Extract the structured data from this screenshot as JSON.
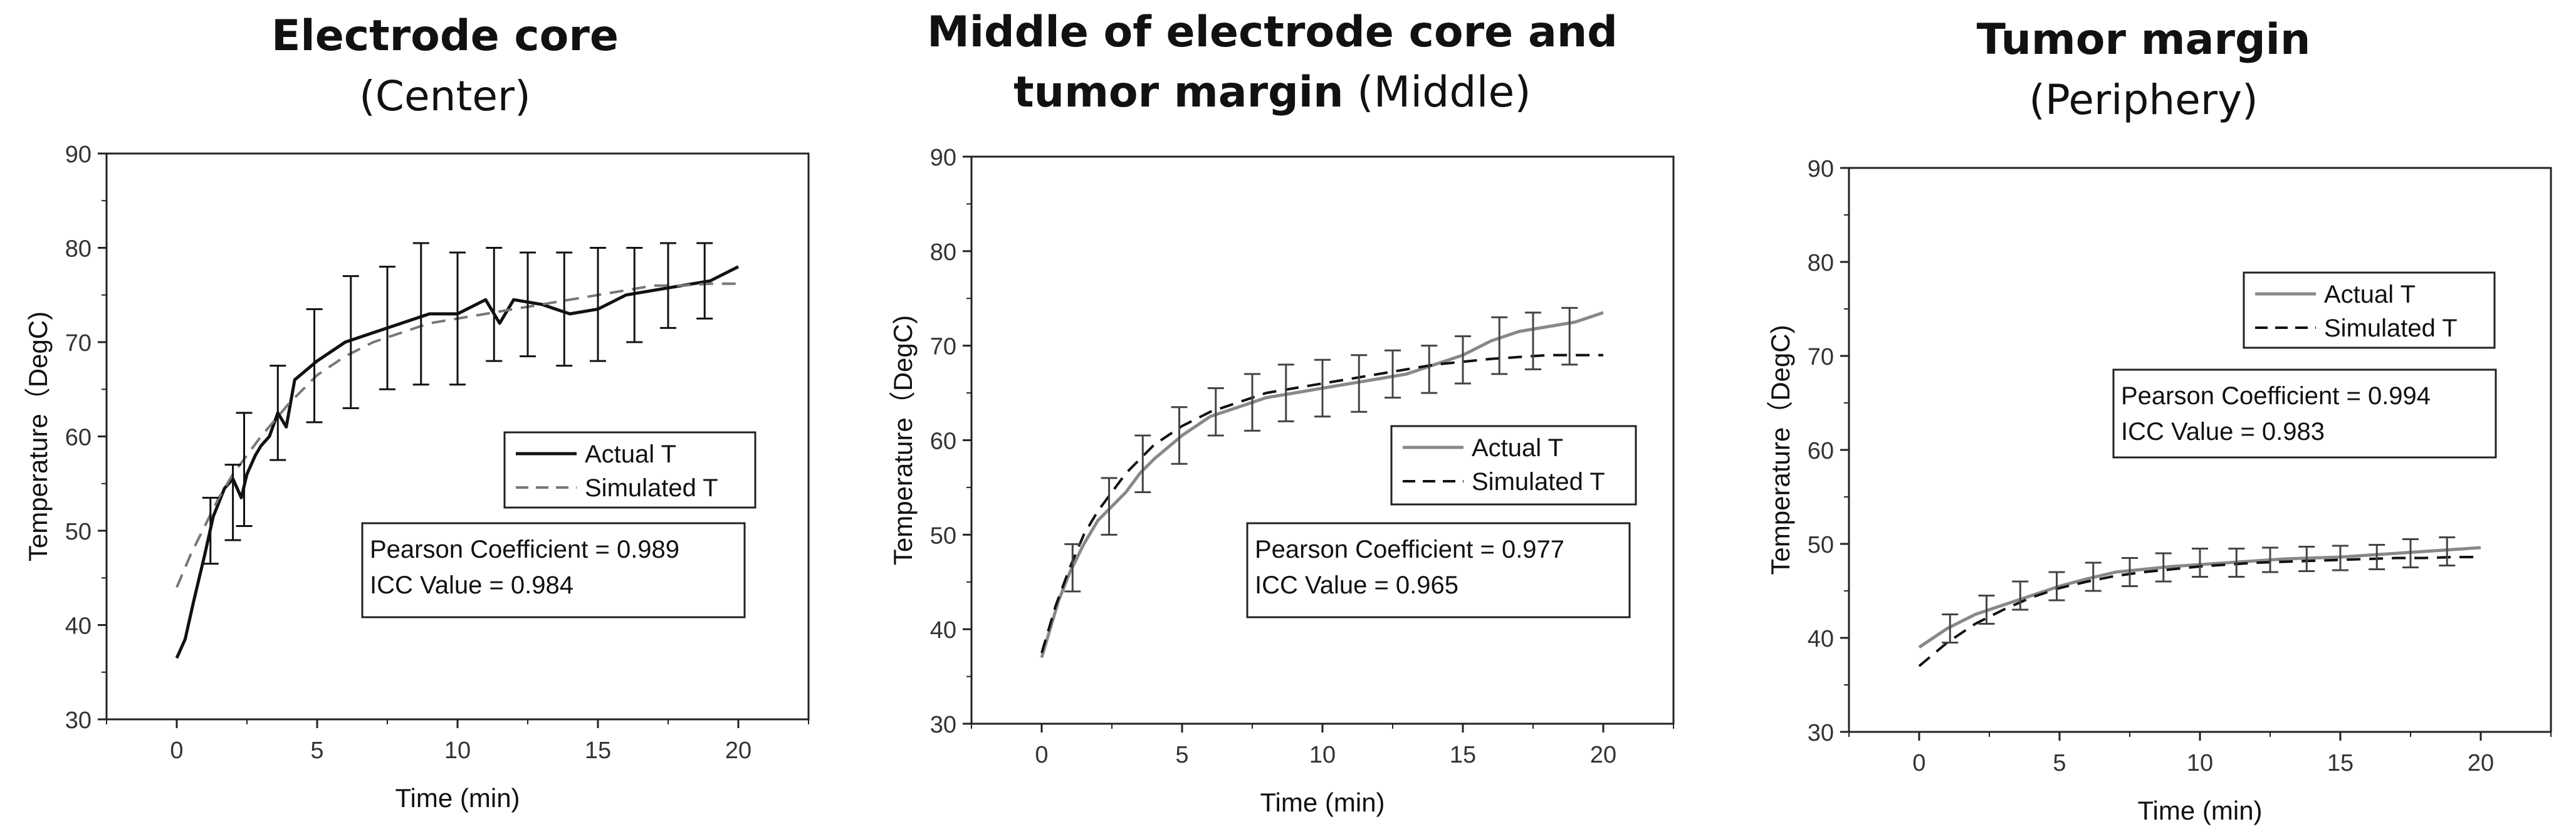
{
  "chart_data": [
    {
      "type": "line",
      "title_bold": "Electrode core",
      "title_rest": "(Center)",
      "xlabel": "Time (min)",
      "ylabel": "Temperature（DegC)",
      "xlim": [
        -2.5,
        22.5
      ],
      "ylim": [
        30,
        90
      ],
      "xticks": [
        0,
        5,
        10,
        15,
        20
      ],
      "yticks": [
        30,
        40,
        50,
        60,
        70,
        80,
        90
      ],
      "legend": {
        "labels": [
          "Actual T",
          "Simulated T"
        ],
        "position": "right-middle"
      },
      "annotation": [
        "Pearson Coefficient = 0.989",
        "ICC Value = 0.984"
      ],
      "colors": {
        "actual": "#111111",
        "simulated": "#777777"
      },
      "series": [
        {
          "name": "Actual T",
          "style": "solid",
          "x": [
            0,
            0.3,
            0.6,
            1.0,
            1.3,
            1.7,
            2.0,
            2.3,
            2.5,
            2.8,
            3.0,
            3.3,
            3.6,
            3.9,
            4.2,
            5.0,
            6.0,
            7.0,
            8.0,
            9.0,
            10.0,
            11.0,
            11.5,
            12.0,
            13.0,
            14.0,
            15.0,
            16.0,
            17.0,
            18.0,
            19.0,
            20.0
          ],
          "y": [
            36.5,
            38.5,
            42.5,
            47.5,
            51.5,
            54.5,
            55.5,
            53.5,
            56.0,
            58.0,
            59.0,
            60.0,
            62.5,
            61.0,
            66.0,
            68.0,
            70.0,
            71.0,
            72.0,
            73.0,
            73.0,
            74.5,
            72.0,
            74.5,
            74.0,
            73.0,
            73.5,
            75.0,
            75.5,
            76.0,
            76.5,
            78.0
          ]
        },
        {
          "name": "Simulated T",
          "style": "dashed",
          "x": [
            0,
            0.5,
            1,
            1.5,
            2,
            2.5,
            3,
            4,
            5,
            6,
            7,
            8,
            9,
            10,
            11,
            12,
            13,
            14,
            15,
            16,
            17,
            18,
            19,
            20
          ],
          "y": [
            44,
            47.5,
            50.5,
            53.5,
            56,
            58,
            60,
            63.5,
            66.5,
            68.5,
            70,
            71,
            72,
            72.5,
            73,
            73.5,
            74,
            74.5,
            75,
            75.5,
            76,
            76,
            76.2,
            76.2
          ]
        }
      ],
      "error_bars": [
        {
          "x": 1.2,
          "y": 50,
          "err": 3.5
        },
        {
          "x": 2.0,
          "y": 53,
          "err": 4
        },
        {
          "x": 2.4,
          "y": 56.5,
          "err": 6
        },
        {
          "x": 3.6,
          "y": 62.5,
          "err": 5
        },
        {
          "x": 4.9,
          "y": 67.5,
          "err": 6
        },
        {
          "x": 6.2,
          "y": 70,
          "err": 7
        },
        {
          "x": 7.5,
          "y": 71.5,
          "err": 6.5
        },
        {
          "x": 8.7,
          "y": 73,
          "err": 7.5
        },
        {
          "x": 10.0,
          "y": 72.5,
          "err": 7
        },
        {
          "x": 11.3,
          "y": 74,
          "err": 6
        },
        {
          "x": 12.5,
          "y": 74,
          "err": 5.5
        },
        {
          "x": 13.8,
          "y": 73.5,
          "err": 6
        },
        {
          "x": 15.0,
          "y": 74,
          "err": 6
        },
        {
          "x": 16.3,
          "y": 75,
          "err": 5
        },
        {
          "x": 17.5,
          "y": 76,
          "err": 4.5
        },
        {
          "x": 18.8,
          "y": 76.5,
          "err": 4
        }
      ]
    },
    {
      "type": "line",
      "title_bold": "Middle of electrode core",
      "title_bold2": "tumor margin",
      "title_and": "and",
      "title_rest": "(Middle)",
      "xlabel": "Time (min)",
      "ylabel": "Temperature（DegC)",
      "xlim": [
        -2.5,
        22.5
      ],
      "ylim": [
        30,
        90
      ],
      "xticks": [
        0,
        5,
        10,
        15,
        20
      ],
      "yticks": [
        30,
        40,
        50,
        60,
        70,
        80,
        90
      ],
      "legend": {
        "labels": [
          "Actual T",
          "Simulated T"
        ],
        "position": "right-middle"
      },
      "annotation": [
        "Pearson Coefficient = 0.977",
        "ICC Value = 0.965"
      ],
      "colors": {
        "actual": "#888888",
        "simulated": "#111111"
      },
      "series": [
        {
          "name": "Actual T",
          "style": "solid",
          "x": [
            0,
            0.3,
            0.6,
            1.0,
            1.5,
            2.0,
            2.5,
            3.0,
            3.5,
            4.0,
            5.0,
            6.0,
            7.0,
            8.0,
            9.0,
            10.0,
            11.0,
            12.0,
            13.0,
            14.0,
            15.0,
            16.0,
            17.0,
            18.0,
            19.0,
            20.0
          ],
          "y": [
            37,
            40,
            43,
            46,
            49,
            51.5,
            53,
            54.5,
            56.5,
            58,
            60.5,
            62.5,
            63.5,
            64.5,
            65,
            65.5,
            66,
            66.5,
            67,
            68,
            69,
            70.5,
            71.5,
            72,
            72.5,
            73.5
          ]
        },
        {
          "name": "Simulated T",
          "style": "dashed",
          "x": [
            0,
            0.5,
            1,
            1.5,
            2,
            2.5,
            3,
            4,
            5,
            6,
            7,
            8,
            9,
            10,
            11,
            12,
            13,
            14,
            15,
            16,
            17,
            18,
            19,
            20
          ],
          "y": [
            37.5,
            42.5,
            46.5,
            50,
            52.5,
            54.5,
            56.5,
            59.5,
            61.5,
            63,
            64,
            65,
            65.5,
            66,
            66.5,
            67,
            67.5,
            68,
            68.3,
            68.6,
            68.8,
            69,
            69,
            69
          ]
        }
      ],
      "error_bars": [
        {
          "x": 1.1,
          "y": 46.5,
          "err": 2.5
        },
        {
          "x": 2.4,
          "y": 53,
          "err": 3
        },
        {
          "x": 3.6,
          "y": 57.5,
          "err": 3
        },
        {
          "x": 4.9,
          "y": 60.5,
          "err": 3
        },
        {
          "x": 6.2,
          "y": 63,
          "err": 2.5
        },
        {
          "x": 7.5,
          "y": 64,
          "err": 3
        },
        {
          "x": 8.7,
          "y": 65,
          "err": 3
        },
        {
          "x": 10.0,
          "y": 65.5,
          "err": 3
        },
        {
          "x": 11.3,
          "y": 66,
          "err": 3
        },
        {
          "x": 12.5,
          "y": 67,
          "err": 2.5
        },
        {
          "x": 13.8,
          "y": 67.5,
          "err": 2.5
        },
        {
          "x": 15.0,
          "y": 68.5,
          "err": 2.5
        },
        {
          "x": 16.3,
          "y": 70,
          "err": 3
        },
        {
          "x": 17.5,
          "y": 70.5,
          "err": 3
        },
        {
          "x": 18.8,
          "y": 71,
          "err": 3
        }
      ]
    },
    {
      "type": "line",
      "title_bold": "Tumor margin",
      "title_rest": "(Periphery)",
      "xlabel": "Time (min)",
      "ylabel": "Temperature（DegC)",
      "xlim": [
        -2.5,
        22.5
      ],
      "ylim": [
        30,
        90
      ],
      "xticks": [
        0,
        5,
        10,
        15,
        20
      ],
      "yticks": [
        30,
        40,
        50,
        60,
        70,
        80,
        90
      ],
      "legend": {
        "labels": [
          "Actual T",
          "Simulated T"
        ],
        "position": "top-right"
      },
      "annotation": [
        "Pearson Coefficient = 0.994",
        "ICC Value = 0.983"
      ],
      "colors": {
        "actual": "#888888",
        "simulated": "#111111"
      },
      "series": [
        {
          "name": "Actual T",
          "style": "solid",
          "x": [
            0,
            1,
            2,
            3,
            4,
            5,
            6,
            7,
            8,
            9,
            10,
            11,
            12,
            13,
            14,
            15,
            16,
            17,
            18,
            19,
            20
          ],
          "y": [
            39,
            41,
            42.5,
            43.5,
            44.5,
            45.5,
            46.3,
            47,
            47.3,
            47.6,
            47.8,
            48,
            48.2,
            48.4,
            48.5,
            48.6,
            48.8,
            49,
            49.2,
            49.4,
            49.6
          ]
        },
        {
          "name": "Simulated T",
          "style": "dashed",
          "x": [
            0,
            1,
            2,
            3,
            4,
            5,
            6,
            7,
            8,
            9,
            10,
            11,
            12,
            13,
            14,
            15,
            16,
            17,
            18,
            19,
            20
          ],
          "y": [
            37,
            39.5,
            41.5,
            43,
            44.3,
            45.3,
            46,
            46.6,
            47,
            47.3,
            47.6,
            47.8,
            48,
            48.1,
            48.2,
            48.3,
            48.4,
            48.5,
            48.5,
            48.6,
            48.6
          ]
        }
      ],
      "error_bars": [
        {
          "x": 1.1,
          "y": 41,
          "err": 1.5
        },
        {
          "x": 2.4,
          "y": 43,
          "err": 1.5
        },
        {
          "x": 3.6,
          "y": 44.5,
          "err": 1.5
        },
        {
          "x": 4.9,
          "y": 45.5,
          "err": 1.5
        },
        {
          "x": 6.2,
          "y": 46.5,
          "err": 1.5
        },
        {
          "x": 7.5,
          "y": 47,
          "err": 1.5
        },
        {
          "x": 8.7,
          "y": 47.5,
          "err": 1.5
        },
        {
          "x": 10.0,
          "y": 48,
          "err": 1.5
        },
        {
          "x": 11.3,
          "y": 48,
          "err": 1.5
        },
        {
          "x": 12.5,
          "y": 48.3,
          "err": 1.3
        },
        {
          "x": 13.8,
          "y": 48.4,
          "err": 1.3
        },
        {
          "x": 15.0,
          "y": 48.5,
          "err": 1.3
        },
        {
          "x": 16.3,
          "y": 48.6,
          "err": 1.3
        },
        {
          "x": 17.5,
          "y": 49,
          "err": 1.5
        },
        {
          "x": 18.8,
          "y": 49.2,
          "err": 1.5
        }
      ]
    }
  ]
}
